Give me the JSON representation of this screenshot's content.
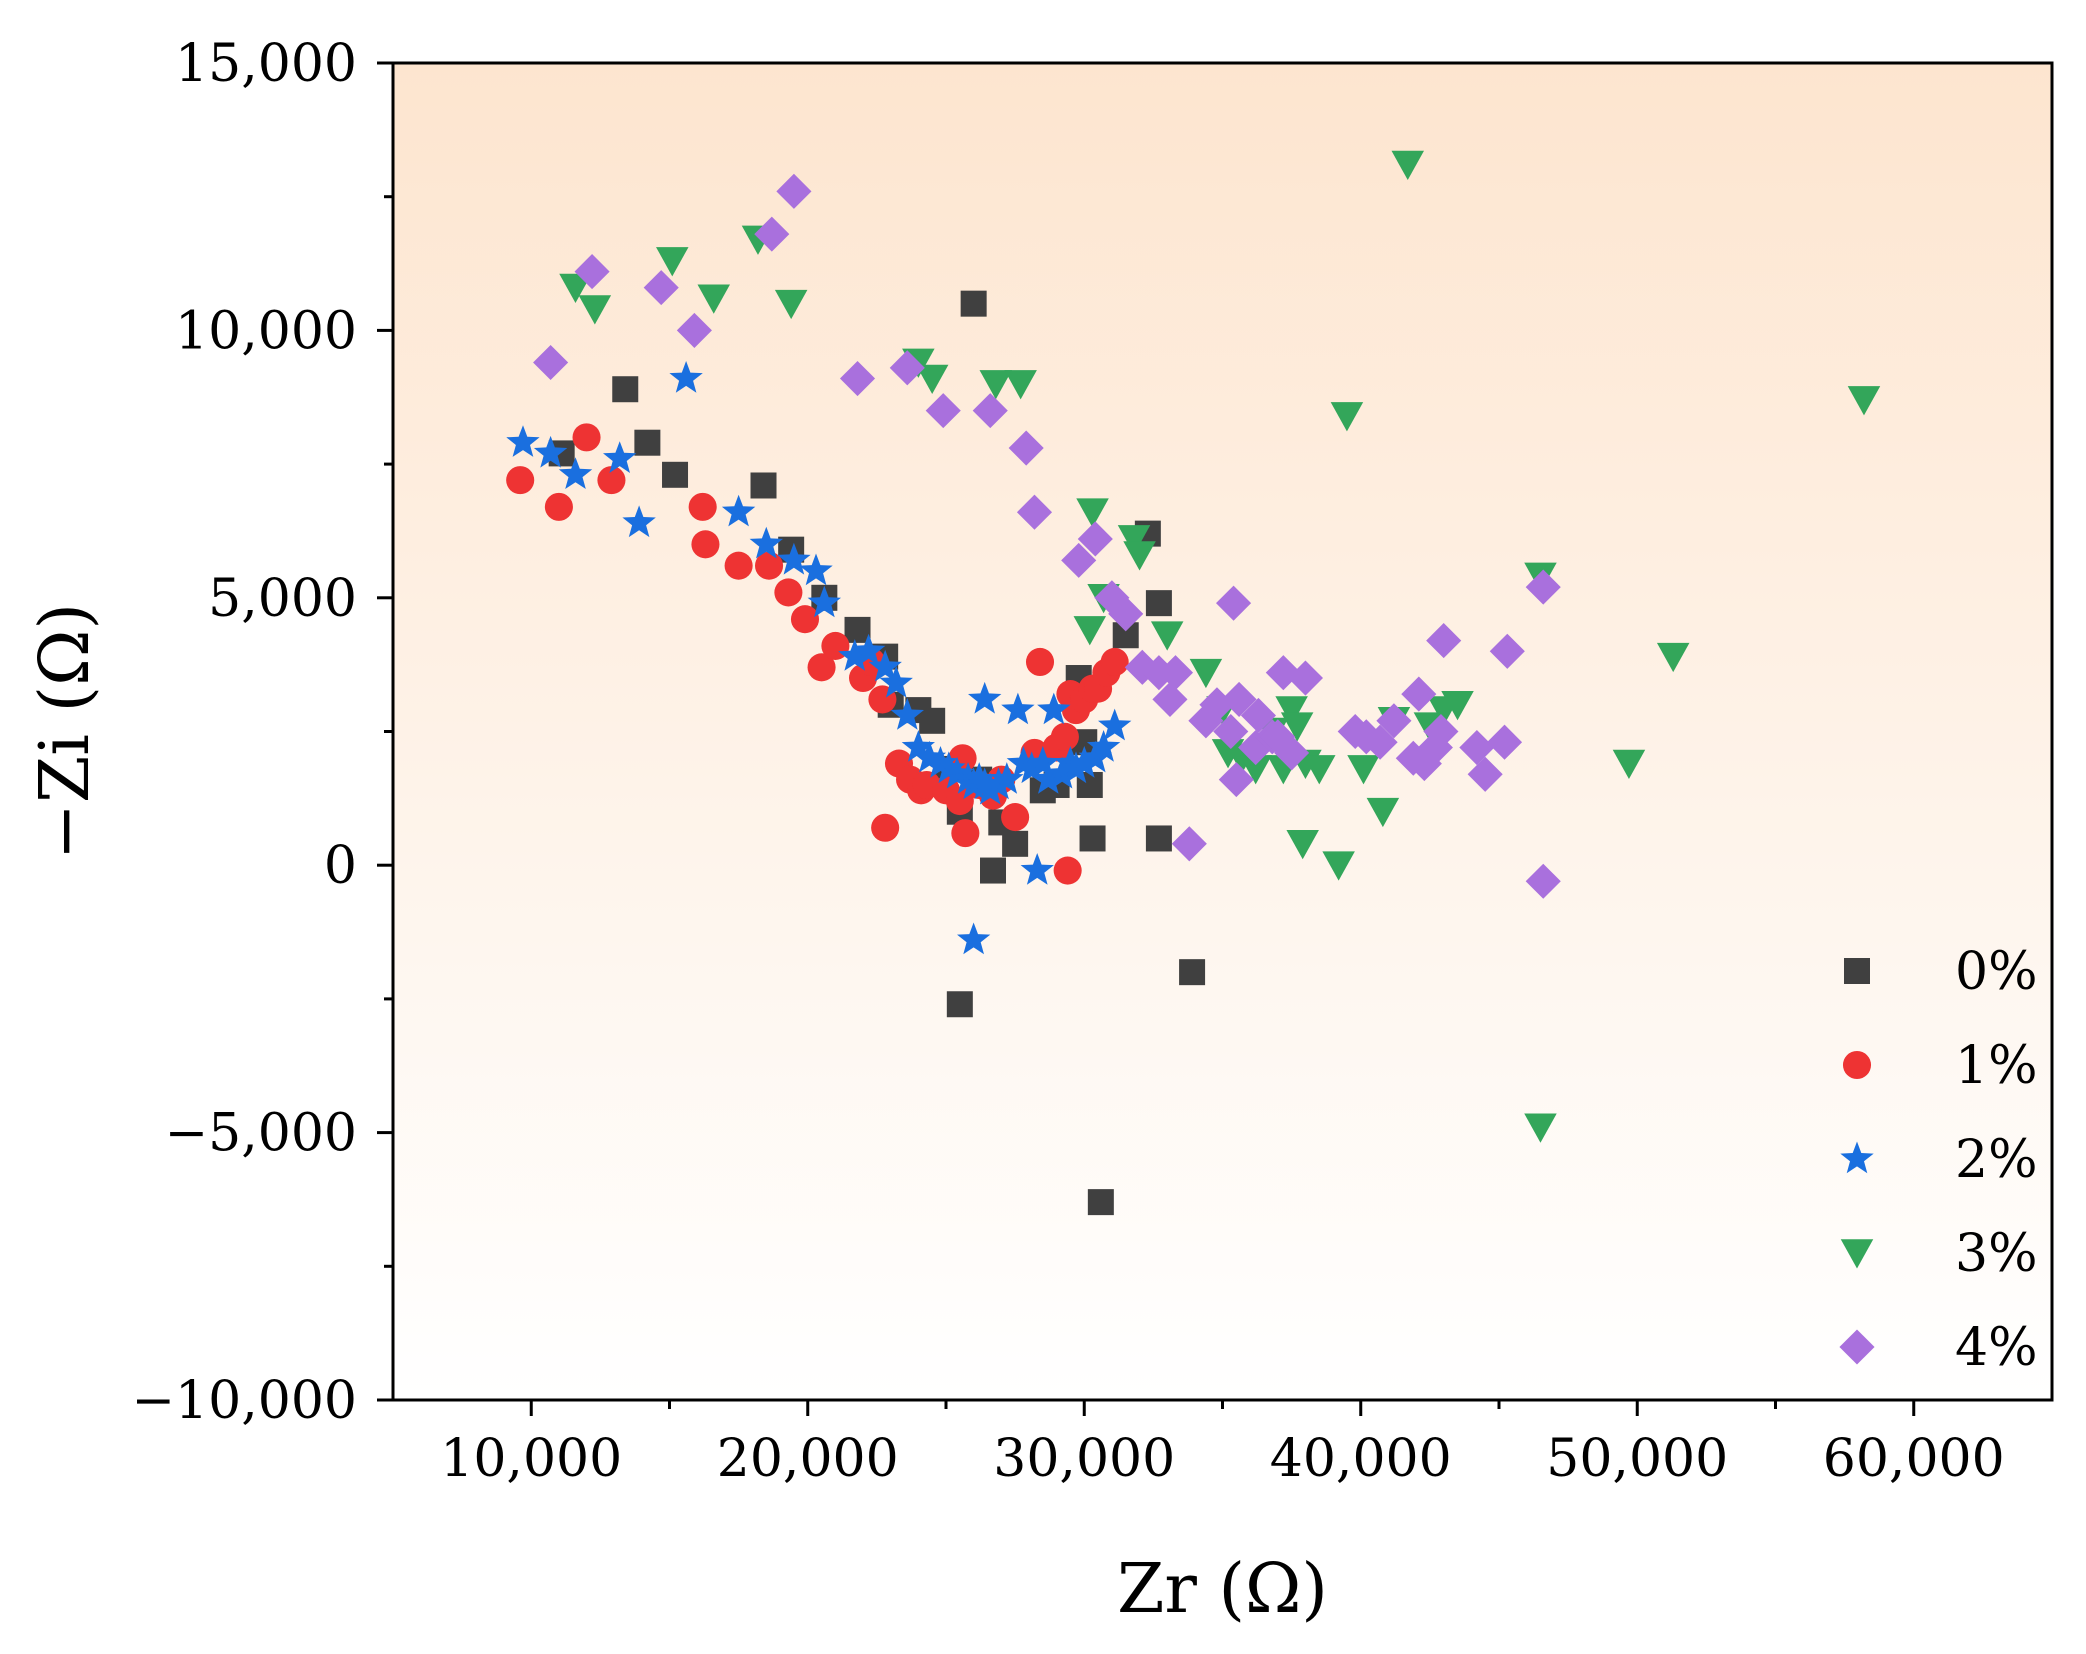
{
  "chart_data": {
    "type": "scatter",
    "title": "",
    "xlabel": "Zr (Ω)",
    "ylabel": "−Zi (Ω)",
    "xlim": [
      5000,
      65000
    ],
    "ylim": [
      -10000,
      15000
    ],
    "x_ticks": [
      10000,
      20000,
      30000,
      40000,
      50000,
      60000
    ],
    "x_tick_labels": [
      "10,000",
      "20,000",
      "30,000",
      "40,000",
      "50,000",
      "60,000"
    ],
    "y_ticks": [
      -10000,
      -5000,
      0,
      5000,
      10000,
      15000
    ],
    "y_tick_labels": [
      "−10,000",
      "−5,000",
      "0",
      "5,000",
      "10,000",
      "15,000"
    ],
    "background_gradient": [
      "#fde5cf",
      "#ffffff"
    ],
    "legend_position": "bottom-right",
    "series": [
      {
        "name": "0%",
        "marker": "square",
        "color": "#404040",
        "points": [
          [
            11100,
            7700
          ],
          [
            13400,
            8900
          ],
          [
            14200,
            7900
          ],
          [
            15200,
            7300
          ],
          [
            18400,
            7100
          ],
          [
            19400,
            5900
          ],
          [
            20600,
            5000
          ],
          [
            21800,
            4400
          ],
          [
            22800,
            3900
          ],
          [
            23000,
            3000
          ],
          [
            24000,
            2900
          ],
          [
            24500,
            2700
          ],
          [
            25000,
            1800
          ],
          [
            25500,
            1000
          ],
          [
            26000,
            10500
          ],
          [
            26200,
            1600
          ],
          [
            26700,
            -100
          ],
          [
            27000,
            800
          ],
          [
            27500,
            400
          ],
          [
            28500,
            1400
          ],
          [
            29000,
            1500
          ],
          [
            29800,
            3500
          ],
          [
            30000,
            2300
          ],
          [
            30200,
            1500
          ],
          [
            30300,
            500
          ],
          [
            30600,
            -6300
          ],
          [
            31500,
            4300
          ],
          [
            32300,
            6200
          ],
          [
            32700,
            4900
          ],
          [
            32700,
            500
          ],
          [
            33900,
            -2000
          ],
          [
            25500,
            -2600
          ]
        ]
      },
      {
        "name": "1%",
        "marker": "circle",
        "color": "#ee3333",
        "points": [
          [
            9600,
            7200
          ],
          [
            11000,
            6700
          ],
          [
            12000,
            8000
          ],
          [
            12900,
            7200
          ],
          [
            16200,
            6700
          ],
          [
            16300,
            6000
          ],
          [
            17500,
            5600
          ],
          [
            18600,
            5600
          ],
          [
            19300,
            5100
          ],
          [
            19900,
            4600
          ],
          [
            20500,
            3700
          ],
          [
            21000,
            4100
          ],
          [
            22000,
            3500
          ],
          [
            22300,
            3800
          ],
          [
            22700,
            3100
          ],
          [
            22800,
            700
          ],
          [
            23300,
            1900
          ],
          [
            23700,
            1600
          ],
          [
            24100,
            1400
          ],
          [
            24300,
            1500
          ],
          [
            25000,
            1400
          ],
          [
            25500,
            1200
          ],
          [
            25600,
            2000
          ],
          [
            25700,
            600
          ],
          [
            26200,
            1500
          ],
          [
            26700,
            1300
          ],
          [
            27000,
            1600
          ],
          [
            27500,
            900
          ],
          [
            28200,
            2100
          ],
          [
            28400,
            3800
          ],
          [
            29000,
            2200
          ],
          [
            29300,
            2400
          ],
          [
            29400,
            -100
          ],
          [
            29500,
            3200
          ],
          [
            29700,
            2900
          ],
          [
            30000,
            3100
          ],
          [
            30300,
            3300
          ],
          [
            30500,
            3300
          ],
          [
            30800,
            3600
          ],
          [
            31100,
            3800
          ]
        ]
      },
      {
        "name": "2%",
        "marker": "star",
        "color": "#1a6fdf",
        "points": [
          [
            9700,
            7900
          ],
          [
            10700,
            7700
          ],
          [
            11600,
            7300
          ],
          [
            13200,
            7600
          ],
          [
            13900,
            6400
          ],
          [
            15600,
            9100
          ],
          [
            17500,
            6600
          ],
          [
            18500,
            6000
          ],
          [
            19500,
            5700
          ],
          [
            20300,
            5500
          ],
          [
            20600,
            4900
          ],
          [
            21700,
            3900
          ],
          [
            22200,
            4000
          ],
          [
            22800,
            3700
          ],
          [
            23200,
            3400
          ],
          [
            23600,
            2800
          ],
          [
            24000,
            2200
          ],
          [
            24400,
            2000
          ],
          [
            24800,
            1900
          ],
          [
            25100,
            1800
          ],
          [
            25400,
            1700
          ],
          [
            25800,
            1600
          ],
          [
            26000,
            1500
          ],
          [
            26200,
            1600
          ],
          [
            26400,
            1500
          ],
          [
            26600,
            1400
          ],
          [
            26900,
            1500
          ],
          [
            26000,
            -1400
          ],
          [
            26400,
            3100
          ],
          [
            27200,
            1600
          ],
          [
            27600,
            2900
          ],
          [
            27800,
            1900
          ],
          [
            28100,
            1800
          ],
          [
            28300,
            -100
          ],
          [
            28500,
            1900
          ],
          [
            28700,
            1600
          ],
          [
            28900,
            2900
          ],
          [
            29200,
            1700
          ],
          [
            29500,
            1900
          ],
          [
            29700,
            1800
          ],
          [
            30000,
            1900
          ],
          [
            30400,
            2000
          ],
          [
            30700,
            2200
          ],
          [
            31100,
            2600
          ]
        ]
      },
      {
        "name": "3%",
        "marker": "triangle-down",
        "color": "#33a65a",
        "points": [
          [
            11600,
            10800
          ],
          [
            12300,
            10400
          ],
          [
            15100,
            11300
          ],
          [
            16600,
            10600
          ],
          [
            18200,
            11700
          ],
          [
            19400,
            10500
          ],
          [
            24000,
            9400
          ],
          [
            24500,
            9100
          ],
          [
            26800,
            9000
          ],
          [
            27700,
            9000
          ],
          [
            30300,
            6600
          ],
          [
            30200,
            4400
          ],
          [
            30700,
            5000
          ],
          [
            31800,
            6100
          ],
          [
            32000,
            5800
          ],
          [
            33000,
            4300
          ],
          [
            34400,
            3600
          ],
          [
            35000,
            2900
          ],
          [
            35200,
            2100
          ],
          [
            35700,
            2000
          ],
          [
            36200,
            1800
          ],
          [
            36800,
            2500
          ],
          [
            37200,
            1800
          ],
          [
            37500,
            2900
          ],
          [
            37700,
            2600
          ],
          [
            37900,
            400
          ],
          [
            38000,
            1900
          ],
          [
            38500,
            1800
          ],
          [
            39200,
            0
          ],
          [
            39500,
            8400
          ],
          [
            40100,
            1800
          ],
          [
            40800,
            1000
          ],
          [
            41200,
            2700
          ],
          [
            41700,
            13100
          ],
          [
            42500,
            2600
          ],
          [
            43000,
            2900
          ],
          [
            43500,
            3000
          ],
          [
            46500,
            5400
          ],
          [
            46500,
            -4900
          ],
          [
            49700,
            1900
          ],
          [
            51300,
            3900
          ],
          [
            58200,
            8700
          ]
        ]
      },
      {
        "name": "4%",
        "marker": "diamond",
        "color": "#a970dd",
        "points": [
          [
            10700,
            9400
          ],
          [
            12200,
            11100
          ],
          [
            14700,
            10800
          ],
          [
            15900,
            10000
          ],
          [
            18700,
            11800
          ],
          [
            19500,
            12600
          ],
          [
            21800,
            9100
          ],
          [
            23600,
            9300
          ],
          [
            24900,
            8500
          ],
          [
            26600,
            8500
          ],
          [
            27900,
            7800
          ],
          [
            28200,
            6600
          ],
          [
            29800,
            5700
          ],
          [
            30400,
            6100
          ],
          [
            31000,
            5000
          ],
          [
            31500,
            4700
          ],
          [
            32100,
            3700
          ],
          [
            32700,
            3600
          ],
          [
            33100,
            3100
          ],
          [
            33300,
            3600
          ],
          [
            33800,
            400
          ],
          [
            34400,
            2700
          ],
          [
            34800,
            3000
          ],
          [
            35300,
            2500
          ],
          [
            35400,
            4900
          ],
          [
            35500,
            1600
          ],
          [
            35600,
            3100
          ],
          [
            36200,
            2200
          ],
          [
            36300,
            2800
          ],
          [
            36800,
            2400
          ],
          [
            37000,
            2400
          ],
          [
            37200,
            3600
          ],
          [
            37500,
            2100
          ],
          [
            38000,
            3500
          ],
          [
            39800,
            2500
          ],
          [
            40200,
            2400
          ],
          [
            40700,
            2300
          ],
          [
            41200,
            2700
          ],
          [
            41900,
            2000
          ],
          [
            42100,
            3200
          ],
          [
            42300,
            1900
          ],
          [
            42700,
            2200
          ],
          [
            42900,
            2500
          ],
          [
            43000,
            4200
          ],
          [
            44200,
            2200
          ],
          [
            44500,
            1700
          ],
          [
            45200,
            2300
          ],
          [
            45300,
            4000
          ],
          [
            46600,
            5200
          ],
          [
            46600,
            -300
          ]
        ]
      }
    ]
  }
}
